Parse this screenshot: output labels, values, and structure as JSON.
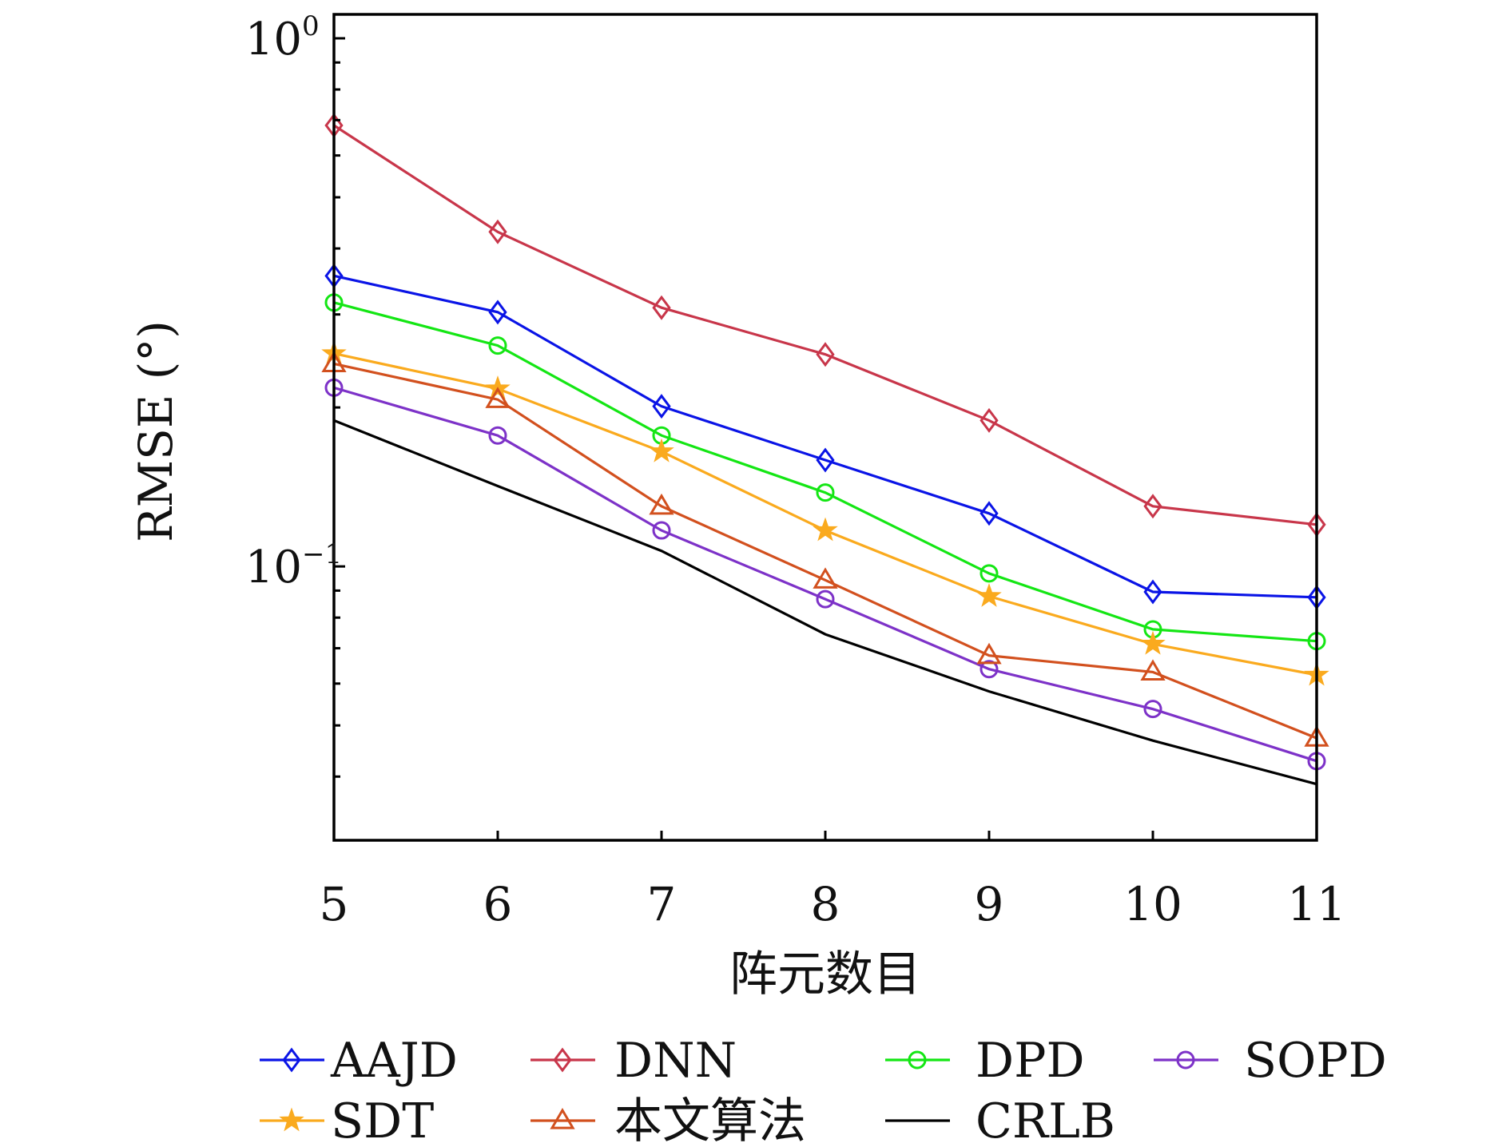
{
  "chart_data": {
    "type": "line",
    "title": "",
    "xlabel": "阵元数目",
    "ylabel": "RMSE (°)",
    "x": [
      5,
      6,
      7,
      8,
      9,
      10,
      11
    ],
    "xticks": [
      "5",
      "6",
      "7",
      "8",
      "9",
      "10",
      "11"
    ],
    "yscale": "log",
    "ylim": [
      0.0303,
      1.11
    ],
    "yticks": [
      {
        "value": 1,
        "base": "10",
        "exp": "0"
      },
      {
        "value": 0.1,
        "base": "10",
        "exp": "−1"
      }
    ],
    "grid": false,
    "legend_position": "bottom",
    "series": [
      {
        "name": "AAJD",
        "color": "#0a14e6",
        "marker": "diamond",
        "values": [
          0.355,
          0.303,
          0.201,
          0.159,
          0.126,
          0.0895,
          0.0874
        ]
      },
      {
        "name": "DNN",
        "color": "#c8364a",
        "marker": "diamond",
        "values": [
          0.684,
          0.43,
          0.309,
          0.252,
          0.189,
          0.13,
          0.12
        ]
      },
      {
        "name": "DPD",
        "color": "#14e614",
        "marker": "circle",
        "values": [
          0.316,
          0.262,
          0.177,
          0.138,
          0.097,
          0.076,
          0.0722
        ]
      },
      {
        "name": "SOPD",
        "color": "#7d32c8",
        "marker": "circle",
        "values": [
          0.218,
          0.177,
          0.117,
          0.0867,
          0.0639,
          0.0537,
          0.0428
        ]
      },
      {
        "name": "SDT",
        "color": "#faaa1e",
        "marker": "star",
        "values": [
          0.253,
          0.217,
          0.165,
          0.117,
          0.0878,
          0.0713,
          0.0623
        ]
      },
      {
        "name": "本文算法",
        "color": "#d2501e",
        "marker": "triangle",
        "values": [
          0.242,
          0.207,
          0.13,
          0.0942,
          0.0678,
          0.0631,
          0.0473
        ]
      },
      {
        "name": "CRLB",
        "color": "#000000",
        "marker": "none",
        "values": [
          0.189,
          0.142,
          0.107,
          0.0744,
          0.058,
          0.0468,
          0.0387
        ]
      }
    ]
  }
}
